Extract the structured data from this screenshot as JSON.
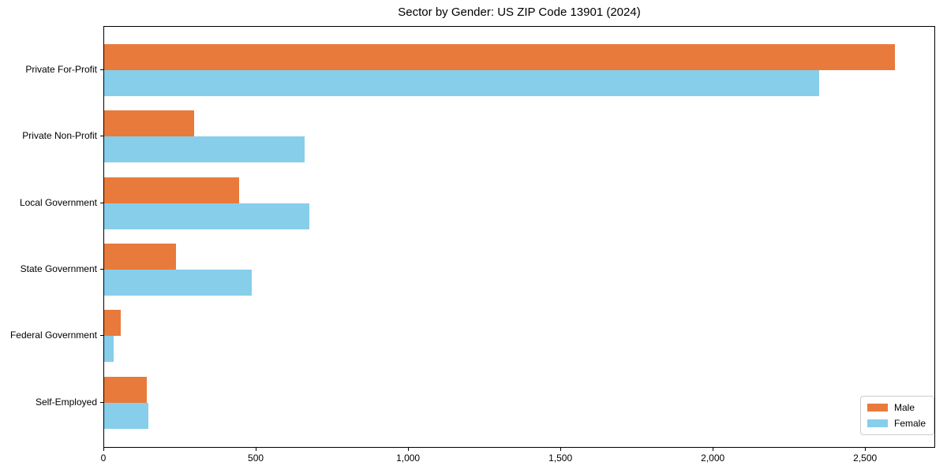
{
  "title": "Sector by Gender: US ZIP Code 13901 (2024)",
  "chart_data": {
    "type": "bar",
    "orientation": "horizontal",
    "title": "Sector by Gender: US ZIP Code 13901 (2024)",
    "categories": [
      "Private For-Profit",
      "Private Non-Profit",
      "Local Government",
      "State Government",
      "Federal Government",
      "Self-Employed"
    ],
    "series": [
      {
        "name": "Male",
        "color": "#E87A3C",
        "values": [
          2600,
          295,
          445,
          235,
          55,
          140
        ]
      },
      {
        "name": "Female",
        "color": "#87CEEB",
        "values": [
          2350,
          660,
          675,
          485,
          30,
          145
        ]
      }
    ],
    "xlabel": "",
    "ylabel": "",
    "xlim": [
      0,
      2730
    ],
    "xticks": [
      0,
      500,
      1000,
      1500,
      2000,
      2500
    ],
    "xtick_labels": [
      "0",
      "500",
      "1,000",
      "1,500",
      "2,000",
      "2,500"
    ],
    "grid": false,
    "legend_position": "lower right"
  }
}
